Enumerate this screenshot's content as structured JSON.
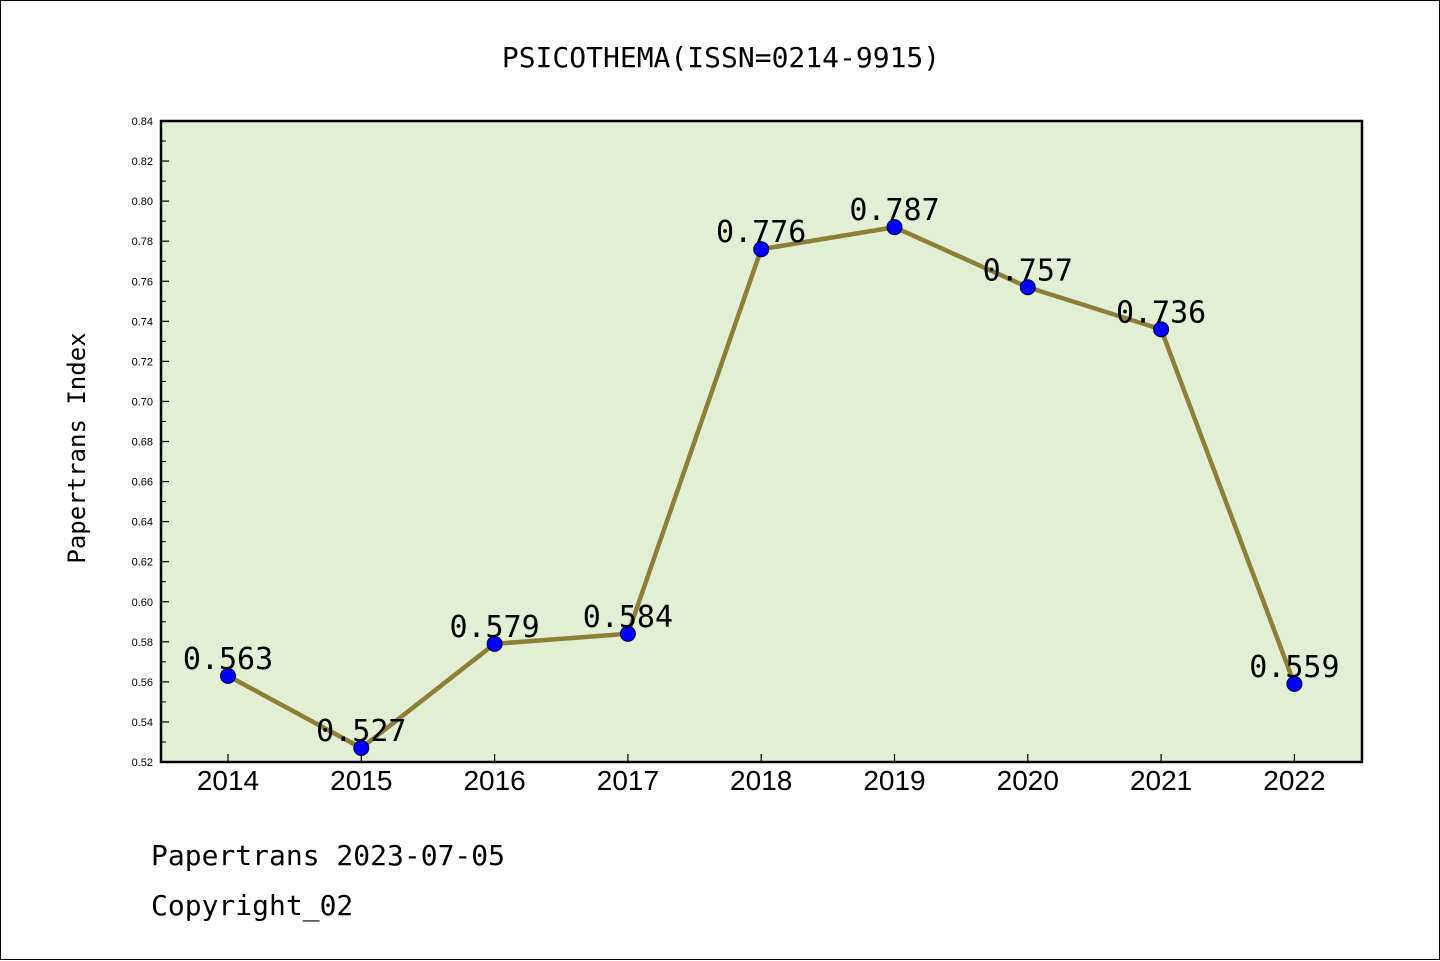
{
  "chart_data": {
    "type": "line",
    "title": "PSICOTHEMA(ISSN=0214-9915)",
    "xlabel": "",
    "ylabel": "Papertrans Index",
    "categories": [
      "2014",
      "2015",
      "2016",
      "2017",
      "2018",
      "2019",
      "2020",
      "2021",
      "2022"
    ],
    "values": [
      0.563,
      0.527,
      0.579,
      0.584,
      0.776,
      0.787,
      0.757,
      0.736,
      0.559
    ],
    "data_labels": [
      "0.563",
      "0.527",
      "0.579",
      "0.584",
      "0.776",
      "0.787",
      "0.757",
      "0.736",
      "0.559"
    ],
    "ylim": [
      0.52,
      0.84
    ],
    "yticks": [
      "0.52",
      "0.54",
      "0.56",
      "0.58",
      "0.60",
      "0.62",
      "0.64",
      "0.66",
      "0.68",
      "0.70",
      "0.72",
      "0.74",
      "0.76",
      "0.78",
      "0.80",
      "0.82",
      "0.84"
    ],
    "grid": false,
    "colors": {
      "plot_background": "#e2efd5",
      "line": "#8b8036",
      "marker": "#0000ff"
    }
  },
  "footer": {
    "line1": "Papertrans 2023-07-05",
    "line2": "Copyright_02"
  }
}
